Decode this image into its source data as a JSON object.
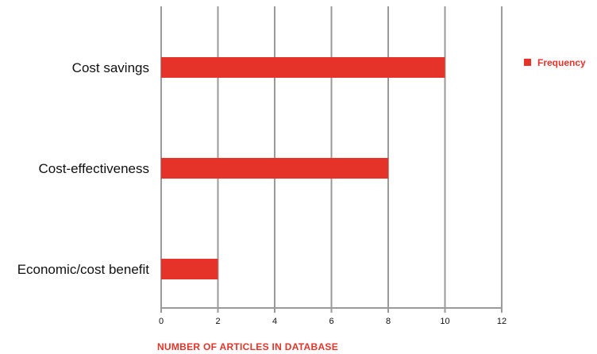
{
  "chart_data": {
    "type": "bar",
    "orientation": "horizontal",
    "categories": [
      "Cost savings",
      "Cost-effectiveness",
      "Economic/cost benefit"
    ],
    "series": [
      {
        "name": "Frequency",
        "values": [
          10,
          8,
          2
        ],
        "color": "#e63329"
      }
    ],
    "xlabel": "NUMBER OF ARTICLES IN DATABASE",
    "ylabel": "",
    "xlim": [
      0,
      12
    ],
    "xticks": [
      "0",
      "2",
      "4",
      "6",
      "8",
      "10",
      "12"
    ],
    "grid": "vertical",
    "legend": {
      "position": "top-right",
      "label": "Frequency"
    },
    "colors": {
      "bar": "#e63329",
      "grid": "#9a9a9a",
      "axis_title": "#e63329"
    }
  }
}
